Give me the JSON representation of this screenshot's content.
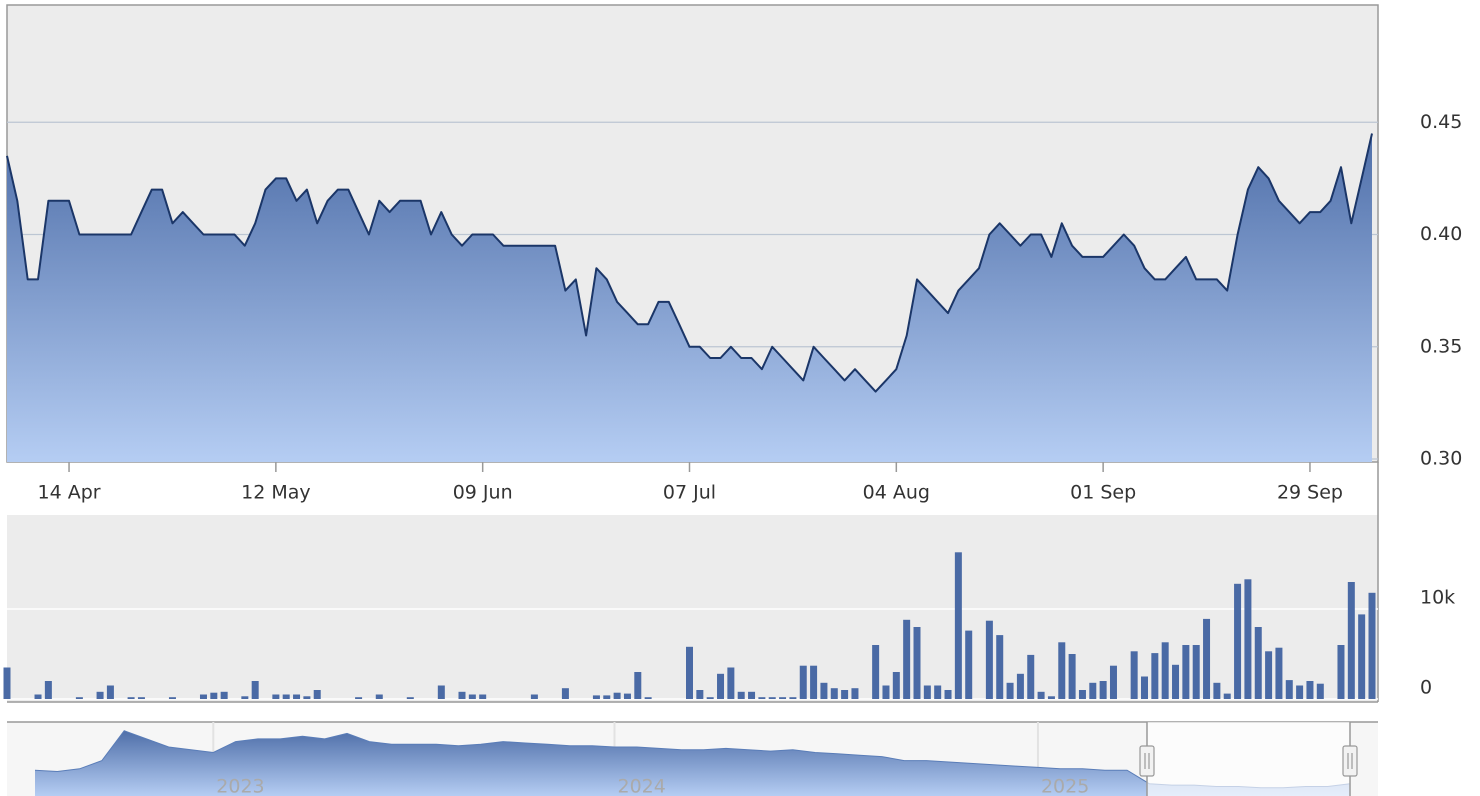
{
  "chart_data": [
    {
      "type": "area",
      "categories": [
        null,
        null,
        null,
        null,
        null,
        null,
        "14 Apr",
        null,
        null,
        null,
        null,
        null,
        null,
        null,
        null,
        null,
        null,
        null,
        null,
        null,
        null,
        null,
        null,
        null,
        null,
        null,
        "12 May",
        null,
        null,
        null,
        null,
        null,
        null,
        null,
        null,
        null,
        null,
        null,
        null,
        null,
        null,
        null,
        null,
        null,
        null,
        null,
        "09 Jun",
        null,
        null,
        null,
        null,
        null,
        null,
        null,
        null,
        null,
        null,
        null,
        null,
        null,
        null,
        null,
        null,
        null,
        null,
        null,
        "07 Jul",
        null,
        null,
        null,
        null,
        null,
        null,
        null,
        null,
        null,
        null,
        null,
        null,
        null,
        null,
        null,
        null,
        null,
        null,
        null,
        "04 Aug",
        null,
        null,
        null,
        null,
        null,
        null,
        null,
        null,
        null,
        null,
        null,
        null,
        null,
        null,
        null,
        null,
        null,
        null,
        null,
        "01 Sep",
        null,
        null,
        null,
        null,
        null,
        null,
        null,
        null,
        null,
        null,
        null,
        null,
        null,
        null,
        null,
        null,
        null,
        null,
        null,
        "29 Sep",
        null,
        null,
        null,
        null,
        null,
        null
      ],
      "values": [
        0.435,
        0.415,
        0.38,
        0.38,
        0.415,
        0.415,
        0.415,
        0.4,
        0.4,
        0.4,
        0.4,
        0.4,
        0.4,
        0.41,
        0.42,
        0.42,
        0.405,
        0.41,
        0.405,
        0.4,
        0.4,
        0.4,
        0.4,
        0.395,
        0.405,
        0.42,
        0.425,
        0.425,
        0.415,
        0.42,
        0.405,
        0.415,
        0.42,
        0.42,
        0.41,
        0.4,
        0.415,
        0.41,
        0.415,
        0.415,
        0.415,
        0.4,
        0.41,
        0.4,
        0.395,
        0.4,
        0.4,
        0.4,
        0.395,
        0.395,
        0.395,
        0.395,
        0.395,
        0.395,
        0.375,
        0.38,
        0.355,
        0.385,
        0.38,
        0.37,
        0.365,
        0.36,
        0.36,
        0.37,
        0.37,
        0.36,
        0.35,
        0.35,
        0.345,
        0.345,
        0.35,
        0.345,
        0.345,
        0.34,
        0.35,
        0.345,
        0.34,
        0.335,
        0.35,
        0.345,
        0.34,
        0.335,
        0.34,
        0.335,
        0.33,
        0.335,
        0.34,
        0.355,
        0.38,
        0.375,
        0.37,
        0.365,
        0.375,
        0.38,
        0.385,
        0.4,
        0.405,
        0.4,
        0.395,
        0.4,
        0.4,
        0.39,
        0.405,
        0.395,
        0.39,
        0.39,
        0.39,
        0.395,
        0.4,
        0.395,
        0.385,
        0.38,
        0.38,
        0.385,
        0.39,
        0.38,
        0.38,
        0.38,
        0.375,
        0.4,
        0.42,
        0.43,
        0.425,
        0.415,
        0.41,
        0.405,
        0.41,
        0.41,
        0.415,
        0.43,
        0.405,
        0.425,
        0.445
      ],
      "color": "#1b3668",
      "ylim": [
        0.3,
        0.5
      ],
      "yticks": [
        {
          "value": 0.3,
          "label": "0.30"
        },
        {
          "value": 0.35,
          "label": "0.35"
        },
        {
          "value": 0.4,
          "label": "0.40"
        },
        {
          "value": 0.45,
          "label": "0.45"
        }
      ],
      "grid": true
    },
    {
      "type": "bar",
      "values": [
        3500,
        0,
        0,
        500,
        2000,
        0,
        0,
        200,
        0,
        800,
        1500,
        0,
        200,
        200,
        0,
        0,
        200,
        0,
        0,
        500,
        700,
        800,
        0,
        300,
        2000,
        0,
        500,
        500,
        500,
        300,
        1000,
        0,
        0,
        0,
        200,
        0,
        500,
        0,
        0,
        200,
        0,
        0,
        1500,
        0,
        800,
        500,
        500,
        0,
        0,
        0,
        0,
        500,
        0,
        0,
        1200,
        0,
        0,
        400,
        400,
        700,
        600,
        3000,
        200,
        0,
        0,
        0,
        5800,
        1000,
        200,
        2800,
        3500,
        800,
        800,
        200,
        200,
        200,
        200,
        3700,
        3700,
        1800,
        1200,
        1000,
        1200,
        0,
        6000,
        1500,
        3000,
        8800,
        8000,
        1500,
        1500,
        1000,
        16300,
        7600,
        0,
        8700,
        7100,
        1800,
        2800,
        4900,
        800,
        300,
        6300,
        5000,
        1000,
        1800,
        2000,
        3700,
        0,
        5300,
        2500,
        5100,
        6300,
        3800,
        6000,
        6000,
        8900,
        1800,
        600,
        12800,
        13300,
        8000,
        5300,
        5700,
        2100,
        1500,
        2000,
        1700,
        0,
        6000,
        13000,
        9400,
        11800
      ],
      "color": "#4a6aa5",
      "ylim": [
        0,
        20000
      ],
      "yticks": [
        0,
        {
          "value": 10000,
          "label": "10k"
        }
      ],
      "grid": true
    },
    {
      "type": "navigator",
      "categories": [
        null,
        null,
        null,
        null,
        null,
        null,
        null,
        null,
        "2023",
        null,
        null,
        null,
        null,
        null,
        null,
        null,
        null,
        null,
        null,
        null,
        null,
        null,
        null,
        null,
        null,
        null,
        "2024",
        null,
        null,
        null,
        null,
        null,
        null,
        null,
        null,
        null,
        null,
        null,
        null,
        null,
        null,
        null,
        null,
        null,
        null,
        "2025",
        null,
        null,
        null,
        null,
        null,
        null,
        null,
        null,
        null,
        null,
        null,
        null,
        null,
        null
      ],
      "values": [
        0.95,
        0.9,
        1.0,
        1.3,
        2.4,
        2.1,
        1.8,
        1.7,
        1.6,
        2.0,
        2.1,
        2.1,
        2.2,
        2.1,
        2.3,
        2.0,
        1.9,
        1.9,
        1.9,
        1.85,
        1.9,
        2.0,
        1.95,
        1.9,
        1.85,
        1.85,
        1.8,
        1.8,
        1.75,
        1.7,
        1.7,
        1.75,
        1.7,
        1.65,
        1.7,
        1.6,
        1.55,
        1.5,
        1.45,
        1.3,
        1.3,
        1.25,
        1.2,
        1.15,
        1.1,
        1.05,
        1.0,
        1.0,
        0.95,
        0.95,
        0.45,
        0.4,
        0.4,
        0.35,
        0.35,
        0.3,
        0.3,
        0.35,
        0.35,
        0.45
      ],
      "color": "#5a7db8",
      "ylim": [
        0,
        2.5
      ]
    }
  ]
}
